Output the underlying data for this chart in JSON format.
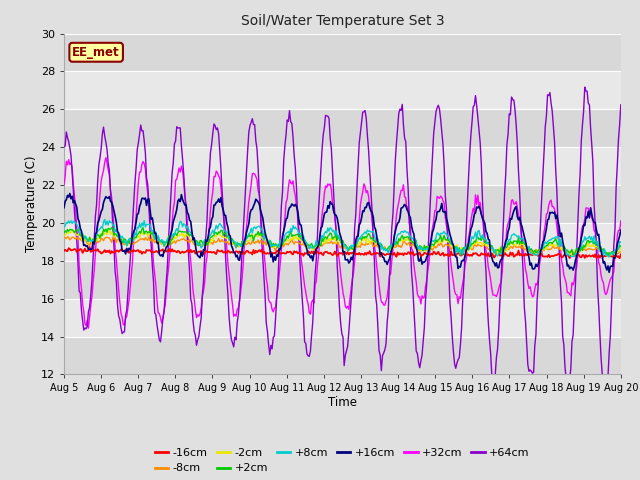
{
  "title": "Soil/Water Temperature Set 3",
  "xlabel": "Time",
  "ylabel": "Temperature (C)",
  "ylim": [
    12,
    30
  ],
  "yticks": [
    12,
    14,
    16,
    18,
    20,
    22,
    24,
    26,
    28,
    30
  ],
  "x_labels": [
    "Aug 5",
    "Aug 6",
    "Aug 7",
    "Aug 8",
    "Aug 9",
    "Aug 10",
    "Aug 11",
    "Aug 12",
    "Aug 13",
    "Aug 14",
    "Aug 15",
    "Aug 16",
    "Aug 17",
    "Aug 18",
    "Aug 19",
    "Aug 20"
  ],
  "bg_color": "#e0e0e0",
  "plot_bg_color": "#e8e8e8",
  "grid_color": "#ffffff",
  "stripe_color": "#d8d8d8",
  "annotation_label": "EE_met",
  "annotation_bg": "#ffffa0",
  "annotation_border": "#8b0000",
  "series_colors": {
    "-16cm": "#ff0000",
    "-8cm": "#ff8c00",
    "-2cm": "#e8e800",
    "+2cm": "#00cc00",
    "+8cm": "#00cccc",
    "+16cm": "#000080",
    "+32cm": "#ff00ff",
    "+64cm": "#8800cc"
  },
  "n_points": 480,
  "figwidth": 6.4,
  "figheight": 4.8,
  "dpi": 100
}
